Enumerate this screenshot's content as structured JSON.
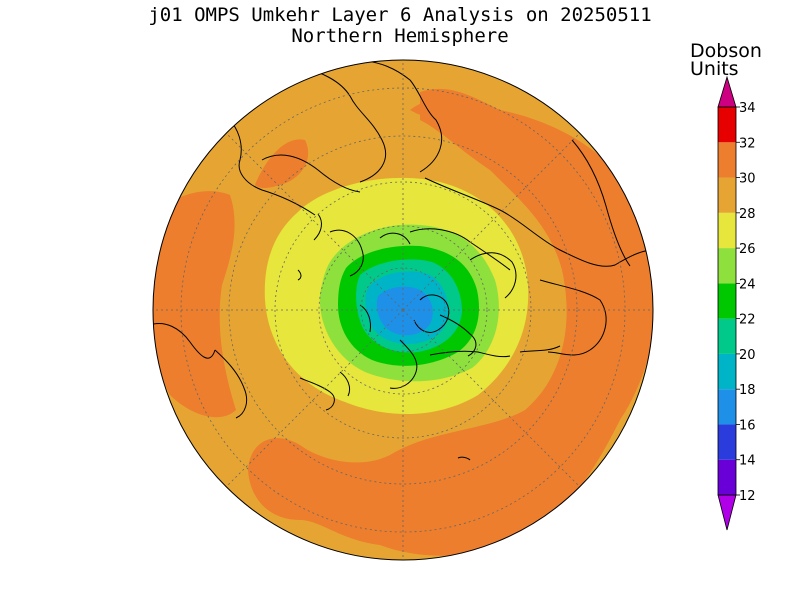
{
  "title": "j01 OMPS Umkehr Layer 6 Analysis on 20250511",
  "subtitle": "Northern Hemisphere",
  "units_label": [
    "Dobson",
    "Units"
  ],
  "projection": "north polar stereographic",
  "colorbar": {
    "min": 12,
    "max": 34,
    "ticks": [
      "12",
      "14",
      "16",
      "18",
      "20",
      "22",
      "24",
      "26",
      "28",
      "30",
      "32",
      "34"
    ],
    "extend": "both",
    "bins": [
      {
        "from": 12,
        "to": 14,
        "color": "#6a00d8"
      },
      {
        "from": 14,
        "to": 16,
        "color": "#2a3cdc"
      },
      {
        "from": 16,
        "to": 18,
        "color": "#1e90e8"
      },
      {
        "from": 18,
        "to": 20,
        "color": "#00b4c8"
      },
      {
        "from": 20,
        "to": 22,
        "color": "#00c98a"
      },
      {
        "from": 22,
        "to": 24,
        "color": "#00c800"
      },
      {
        "from": 24,
        "to": 26,
        "color": "#8ee03c"
      },
      {
        "from": 26,
        "to": 28,
        "color": "#e6e63c"
      },
      {
        "from": 28,
        "to": 30,
        "color": "#e6a533"
      },
      {
        "from": 30,
        "to": 32,
        "color": "#ec7e2d"
      },
      {
        "from": 32,
        "to": 34,
        "color": "#e60000"
      }
    ],
    "lower_arrow_color": "#b000e8",
    "upper_arrow_color": "#cc0080"
  }
}
